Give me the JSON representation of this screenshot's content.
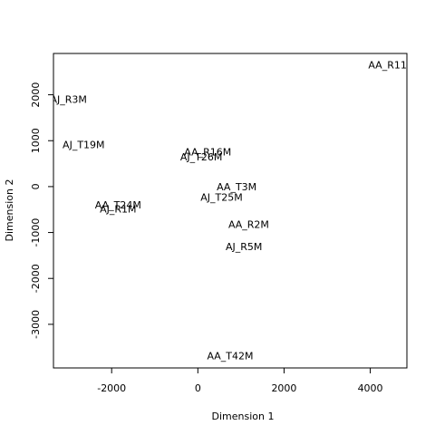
{
  "chart_data": {
    "type": "scatter",
    "xlabel": "Dimension 1",
    "ylabel": "Dimension 2",
    "xlim": [
      -3350,
      4850
    ],
    "ylim": [
      -3950,
      2900
    ],
    "xticks": [
      -2000,
      0,
      2000,
      4000
    ],
    "yticks": [
      -3000,
      -2000,
      -1000,
      0,
      1000,
      2000
    ],
    "grid": false,
    "points": [
      {
        "label": "AA_R11",
        "x": 4400,
        "y": 2650
      },
      {
        "label": "AJ_R3M",
        "x": -3000,
        "y": 1900
      },
      {
        "label": "AJ_T19M",
        "x": -2650,
        "y": 920
      },
      {
        "label": "AA_R16M",
        "x": 230,
        "y": 760
      },
      {
        "label": "AJ_T26M",
        "x": 80,
        "y": 650
      },
      {
        "label": "AA_T3M",
        "x": 900,
        "y": 0
      },
      {
        "label": "AJ_T25M",
        "x": 550,
        "y": -230
      },
      {
        "label": "AA_T24M",
        "x": -1850,
        "y": -400
      },
      {
        "label": "AJ_R1M",
        "x": -1850,
        "y": -490
      },
      {
        "label": "AA_R2M",
        "x": 1180,
        "y": -820
      },
      {
        "label": "AJ_R5M",
        "x": 1070,
        "y": -1300
      },
      {
        "label": "AA_T42M",
        "x": 750,
        "y": -3680
      }
    ]
  }
}
